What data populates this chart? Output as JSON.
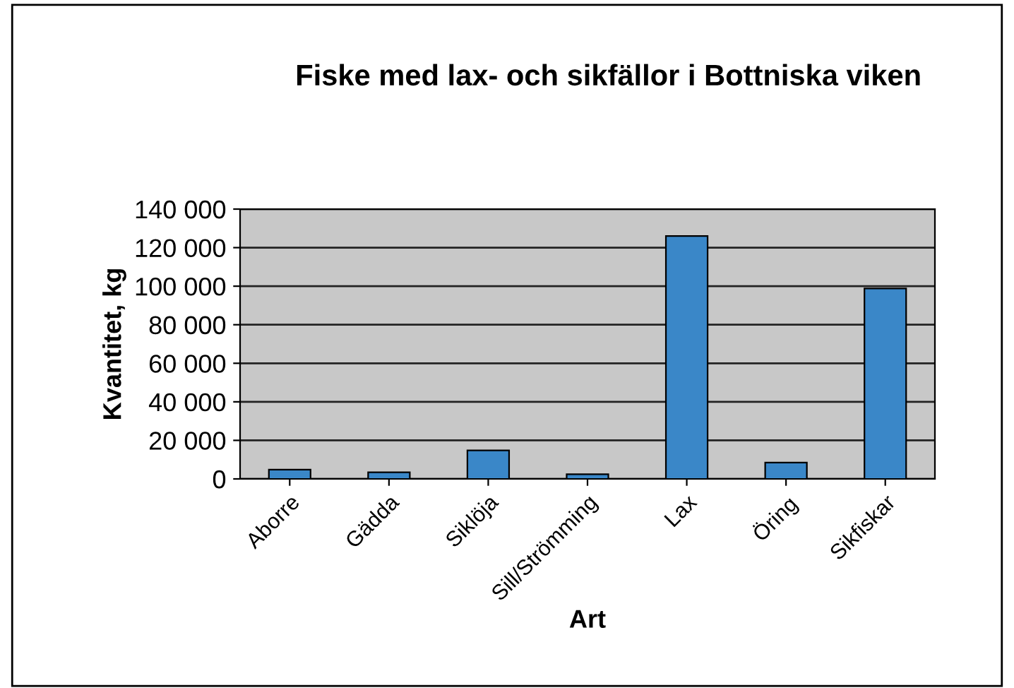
{
  "chart_data": {
    "type": "bar",
    "title": "Fiske med lax- och sikfällor i Bottniska viken",
    "xlabel": "Art",
    "ylabel": "Kvantitet, kg",
    "categories": [
      "Aborre",
      "Gädda",
      "Siklöja",
      "Sill/Strömming",
      "Lax",
      "Öring",
      "Sikfiskar"
    ],
    "values": [
      4800,
      3400,
      14800,
      2400,
      126000,
      8500,
      98800
    ],
    "color": "#3a87c8",
    "ylim": [
      0,
      140000
    ],
    "yticks": [
      0,
      {
        "value": 20000,
        "label": "20 000"
      },
      {
        "value": 40000,
        "label": "40 000"
      },
      {
        "value": 60000,
        "label": "60 000"
      },
      {
        "value": 80000,
        "label": "80 000"
      },
      {
        "value": 100000,
        "label": "100 000"
      },
      {
        "value": 120000,
        "label": "120 000"
      },
      {
        "value": 140000,
        "label": "140 000"
      }
    ],
    "grid": "y"
  }
}
